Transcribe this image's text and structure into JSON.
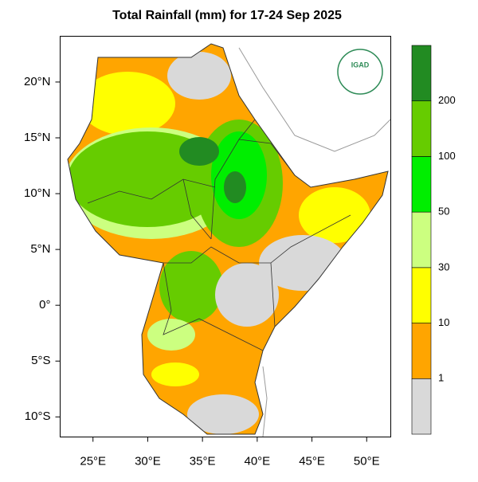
{
  "map": {
    "title": "Total Rainfall (mm) for 17-24 Sep 2025",
    "logo_text": "IGAD",
    "xlim": [
      22,
      52.2
    ],
    "ylim": [
      -11.8,
      24.1
    ],
    "xticks": [
      {
        "value": 25,
        "label": "25°E"
      },
      {
        "value": 30,
        "label": "30°E"
      },
      {
        "value": 35,
        "label": "35°E"
      },
      {
        "value": 40,
        "label": "40°E"
      },
      {
        "value": 45,
        "label": "45°E"
      },
      {
        "value": 50,
        "label": "50°E"
      }
    ],
    "yticks": [
      {
        "value": 20,
        "label": "20°N"
      },
      {
        "value": 15,
        "label": "15°N"
      },
      {
        "value": 10,
        "label": "10°N"
      },
      {
        "value": 5,
        "label": "5°N"
      },
      {
        "value": 0,
        "label": "0°"
      },
      {
        "value": -5,
        "label": "5°S"
      },
      {
        "value": -10,
        "label": "10°S"
      }
    ],
    "legend": {
      "colors": [
        "#d9d9d9",
        "#ffa500",
        "#ffff00",
        "#ccff80",
        "#00ee00",
        "#66cc00",
        "#228b22"
      ],
      "levels": [
        1,
        10,
        30,
        50,
        100,
        200
      ]
    }
  }
}
